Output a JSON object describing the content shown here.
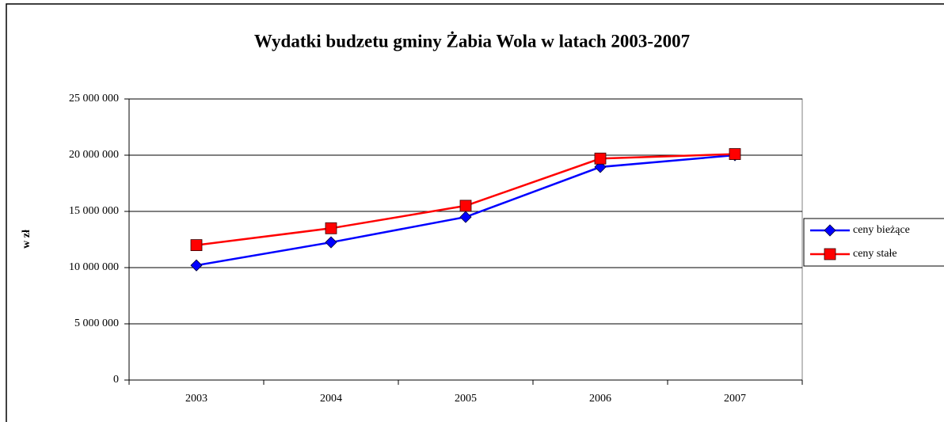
{
  "chart_data": {
    "type": "line",
    "title": "Wydatki budzetu gminy Żabia Wola w latach 2003-2007",
    "y_label": "w zł",
    "categories": [
      "2003",
      "2004",
      "2005",
      "2006",
      "2007"
    ],
    "series": [
      {
        "name": "ceny bieżące",
        "color": "#0000ff",
        "marker": "diamond",
        "values": [
          10200000,
          12250000,
          14500000,
          18950000,
          20000000
        ]
      },
      {
        "name": "ceny stałe",
        "color": "#ff0000",
        "marker": "square",
        "values": [
          12000000,
          13500000,
          15500000,
          19700000,
          20100000
        ]
      }
    ],
    "ylim": [
      0,
      25000000
    ],
    "yticks": [
      0,
      {
        "value": 5000000,
        "label": "5 000 000"
      },
      {
        "value": 10000000,
        "label": "10 000 000"
      },
      {
        "value": 15000000,
        "label": "15 000 000"
      },
      {
        "value": 20000000,
        "label": "20 000 000"
      },
      {
        "value": 25000000,
        "label": "25 000 000"
      }
    ],
    "grid": true,
    "legend": "right"
  }
}
